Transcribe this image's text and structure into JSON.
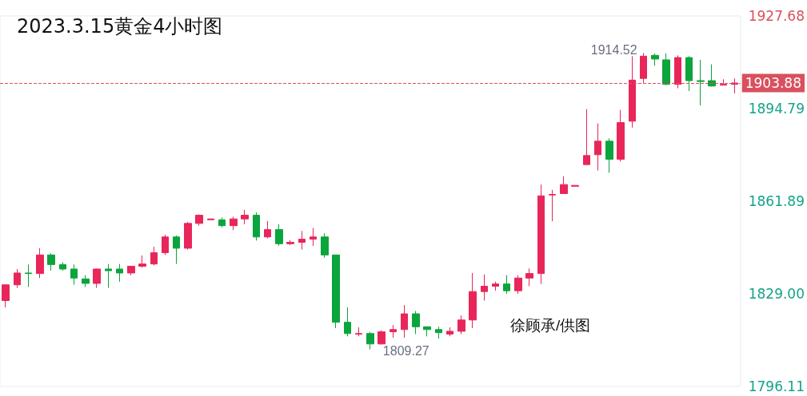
{
  "chart_data": {
    "type": "candlestick",
    "title": "2023.3.15黄金4小时图",
    "categories": [
      null,
      null,
      null,
      null,
      null,
      null,
      null,
      null,
      null,
      null,
      null,
      null,
      null,
      null,
      null,
      null,
      null,
      null,
      null,
      null,
      null,
      null,
      null,
      null,
      null,
      null,
      null,
      null,
      null,
      null,
      null,
      null,
      null,
      null,
      null,
      null,
      null,
      null,
      null,
      null,
      null,
      null,
      null,
      null,
      null,
      null,
      null,
      null,
      null,
      null,
      null,
      null,
      null,
      null,
      null,
      null,
      null,
      null,
      null,
      null,
      null,
      null,
      null,
      null,
      null
    ],
    "ohlc": [
      [
        1826.6,
        1832.2,
        1824.2,
        1832.2
      ],
      [
        1832.2,
        1837.8,
        1831.1,
        1836.4
      ],
      [
        1836.4,
        1839.4,
        1831.4,
        1836.2
      ],
      [
        1836.2,
        1845.2,
        1834.6,
        1842.8
      ],
      [
        1842.8,
        1843.4,
        1837.2,
        1839.4
      ],
      [
        1839.4,
        1840.2,
        1837.2,
        1837.8
      ],
      [
        1837.8,
        1839.4,
        1832.2,
        1834.6
      ],
      [
        1834.3,
        1835.6,
        1831.4,
        1832.7
      ],
      [
        1832.7,
        1838.0,
        1831.1,
        1837.8
      ],
      [
        1837.8,
        1839.6,
        1831.1,
        1837.2
      ],
      [
        1837.8,
        1839.6,
        1833.3,
        1836.4
      ],
      [
        1836.4,
        1838.8,
        1835.6,
        1838.8
      ],
      [
        1838.8,
        1842.6,
        1838.3,
        1839.6
      ],
      [
        1839.6,
        1845.7,
        1839.1,
        1843.6
      ],
      [
        1843.6,
        1850.0,
        1842.8,
        1849.2
      ],
      [
        1849.2,
        1849.7,
        1839.6,
        1845.2
      ],
      [
        1845.2,
        1854.5,
        1844.7,
        1854.0
      ],
      [
        1854.0,
        1857.2,
        1853.2,
        1856.9
      ],
      [
        1855.3,
        1855.6,
        1855.3,
        1855.6
      ],
      [
        1855.3,
        1856.1,
        1852.6,
        1853.2
      ],
      [
        1853.2,
        1856.4,
        1851.6,
        1855.6
      ],
      [
        1855.6,
        1858.8,
        1853.7,
        1856.9
      ],
      [
        1856.9,
        1857.9,
        1847.9,
        1849.2
      ],
      [
        1849.2,
        1854.8,
        1848.7,
        1851.8
      ],
      [
        1851.8,
        1853.7,
        1846.0,
        1846.8
      ],
      [
        1846.8,
        1848.1,
        1846.3,
        1847.3
      ],
      [
        1847.3,
        1851.3,
        1844.7,
        1848.4
      ],
      [
        1848.4,
        1852.4,
        1846.0,
        1849.2
      ],
      [
        1849.2,
        1850.5,
        1841.8,
        1842.8
      ],
      [
        1842.8,
        1842.8,
        1816.8,
        1818.9
      ],
      [
        1818.9,
        1824.2,
        1813.9,
        1814.9
      ],
      [
        1814.7,
        1817.1,
        1813.9,
        1814.9
      ],
      [
        1814.9,
        1815.5,
        1809.27,
        1811.2
      ],
      [
        1811.2,
        1816.0,
        1811.0,
        1815.5
      ],
      [
        1815.5,
        1817.9,
        1813.4,
        1816.3
      ],
      [
        1816.3,
        1825.0,
        1813.4,
        1821.9
      ],
      [
        1821.9,
        1822.9,
        1814.7,
        1817.3
      ],
      [
        1817.3,
        1817.3,
        1813.9,
        1816.3
      ],
      [
        1816.3,
        1817.3,
        1813.1,
        1815.2
      ],
      [
        1814.7,
        1817.1,
        1813.9,
        1815.7
      ],
      [
        1815.7,
        1821.3,
        1814.7,
        1819.7
      ],
      [
        1819.7,
        1836.4,
        1816.8,
        1829.8
      ],
      [
        1829.8,
        1835.9,
        1826.6,
        1831.7
      ],
      [
        1831.7,
        1833.3,
        1830.1,
        1832.5
      ],
      [
        1832.5,
        1835.6,
        1829.0,
        1830.1
      ],
      [
        1830.1,
        1835.6,
        1829.0,
        1834.6
      ],
      [
        1834.6,
        1838.0,
        1831.7,
        1836.2
      ],
      [
        1836.2,
        1867.8,
        1832.5,
        1863.8
      ],
      [
        1864.1,
        1865.9,
        1854.8,
        1864.3
      ],
      [
        1864.6,
        1870.7,
        1864.6,
        1867.8
      ],
      [
        1867.2,
        1867.5,
        1867.2,
        1867.5
      ],
      [
        1874.9,
        1894.6,
        1874.9,
        1878.1
      ],
      [
        1878.4,
        1889.5,
        1872.8,
        1883.2
      ],
      [
        1883.2,
        1884.2,
        1872.0,
        1876.8
      ],
      [
        1876.8,
        1894.3,
        1876.0,
        1889.8
      ],
      [
        1890.3,
        1913.4,
        1888.0,
        1904.9
      ],
      [
        1905.5,
        1914.52,
        1903.9,
        1913.4
      ],
      [
        1913.7,
        1914.4,
        1910.0,
        1912.4
      ],
      [
        1912.1,
        1914.4,
        1903.1,
        1903.4
      ],
      [
        1903.4,
        1913.7,
        1902.0,
        1912.9
      ],
      [
        1912.9,
        1913.4,
        1901.0,
        1904.7
      ],
      [
        1904.7,
        1912.1,
        1895.9,
        1904.4
      ],
      [
        1904.7,
        1910.5,
        1902.6,
        1902.8
      ],
      [
        1903.1,
        1905.2,
        1903.1,
        1903.4
      ],
      [
        1903.4,
        1905.5,
        1900.2,
        1903.88
      ]
    ],
    "colors": [
      "#e8265a",
      "#e8265a",
      "#0aa53c",
      "#e8265a",
      "#0aa53c",
      "#0aa53c",
      "#0aa53c",
      "#0aa53c",
      "#e8265a",
      "#0aa53c",
      "#0aa53c",
      "#e8265a",
      "#e8265a",
      "#e8265a",
      "#e8265a",
      "#0aa53c",
      "#e8265a",
      "#e8265a",
      "#e8265a",
      "#0aa53c",
      "#e8265a",
      "#e8265a",
      "#0aa53c",
      "#e8265a",
      "#0aa53c",
      "#e8265a",
      "#e8265a",
      "#e8265a",
      "#0aa53c",
      "#0aa53c",
      "#0aa53c",
      "#e8265a",
      "#0aa53c",
      "#e8265a",
      "#e8265a",
      "#e8265a",
      "#0aa53c",
      "#0aa53c",
      "#0aa53c",
      "#e8265a",
      "#e8265a",
      "#e8265a",
      "#e8265a",
      "#e8265a",
      "#0aa53c",
      "#e8265a",
      "#e8265a",
      "#e8265a",
      "#e8265a",
      "#e8265a",
      "#e8265a",
      "#e8265a",
      "#e8265a",
      "#0aa53c",
      "#e8265a",
      "#e8265a",
      "#e8265a",
      "#0aa53c",
      "#0aa53c",
      "#e8265a",
      "#0aa53c",
      "#0aa53c",
      "#0aa53c",
      "#e8265a",
      "#e8265a"
    ],
    "ylim": [
      1796.11,
      1927.68
    ],
    "yticks": [
      1796.11,
      {
        "value": 1829,
        "label": "1829.00"
      },
      1861.89,
      1894.79,
      1927.68
    ],
    "grid": false,
    "ref_lines": [
      {
        "axis": "y",
        "value": 1903.88,
        "label": "1903.88",
        "color": "#d9505e",
        "line_style": "dashed"
      }
    ],
    "annotations": [
      "1914.52",
      "1809.27",
      "徐顾承/供图"
    ]
  }
}
